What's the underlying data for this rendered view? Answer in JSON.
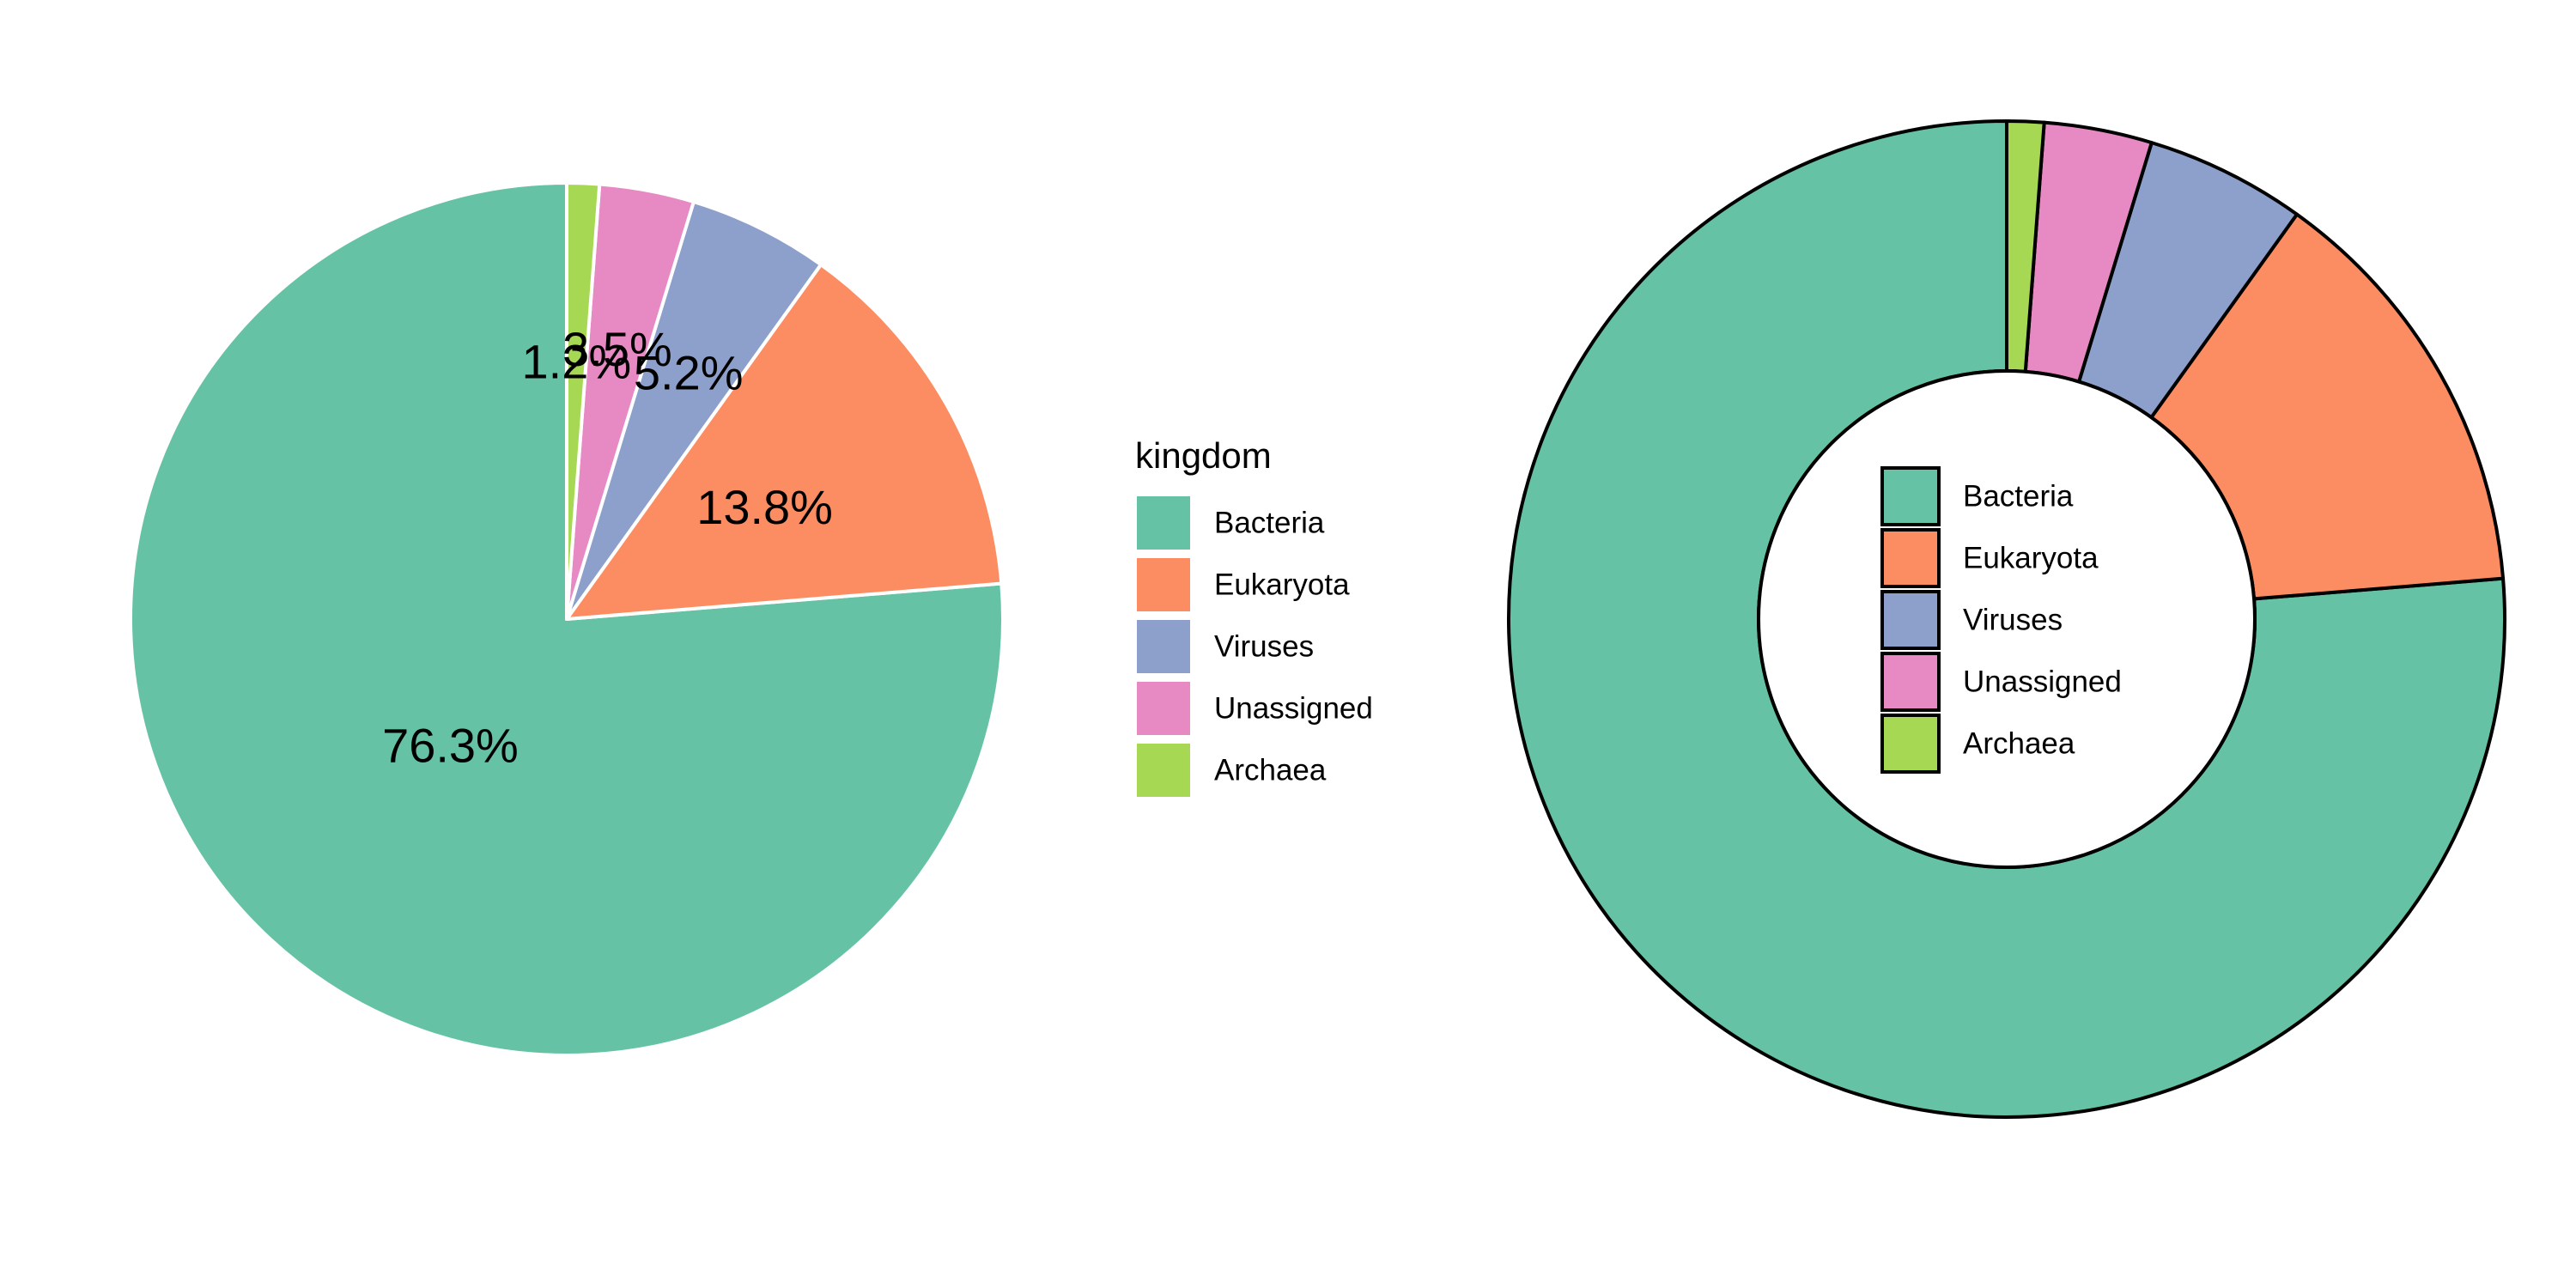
{
  "chart_data": [
    {
      "type": "pie",
      "legend_title": "kingdom",
      "legend_position": "right",
      "categories": [
        "Bacteria",
        "Eukaryota",
        "Viruses",
        "Unassigned",
        "Archaea"
      ],
      "values": [
        76.3,
        13.8,
        5.2,
        3.5,
        1.2
      ],
      "labels": [
        "76.3%",
        "13.8%",
        "5.2%",
        "3.5%",
        "1.2%"
      ],
      "colors": [
        "#66c2a5",
        "#fc8d62",
        "#8da0cb",
        "#e78ac3",
        "#a6d854"
      ],
      "slice_border_color": "#ffffff",
      "direction": "counterclockwise from top"
    },
    {
      "type": "pie",
      "variant": "donut",
      "legend_position": "center",
      "categories": [
        "Bacteria",
        "Eukaryota",
        "Viruses",
        "Unassigned",
        "Archaea"
      ],
      "values": [
        76.3,
        13.8,
        5.2,
        3.5,
        1.2
      ],
      "colors": [
        "#66c2a5",
        "#fc8d62",
        "#8da0cb",
        "#e78ac3",
        "#a6d854"
      ],
      "slice_border_color": "#000000",
      "direction": "counterclockwise from top"
    }
  ]
}
